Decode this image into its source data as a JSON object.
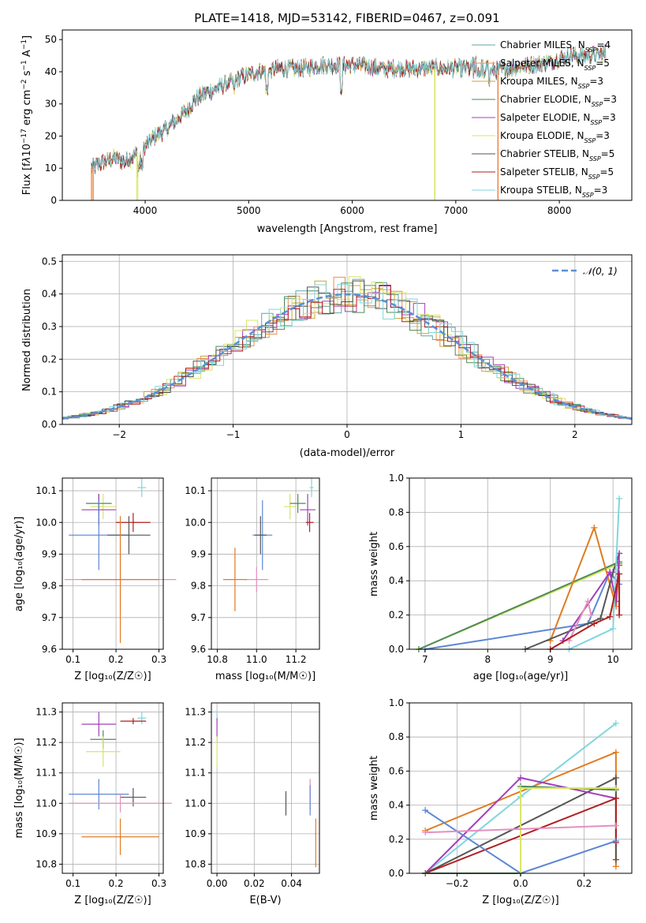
{
  "colors": {
    "chabrier_miles": "#5fa6a0",
    "salpeter_miles": "#ef8d52",
    "kroupa_miles": "#c9a437",
    "chabrier_elodie": "#4d8a56",
    "salpeter_elodie": "#a33fb8",
    "kroupa_elodie": "#d9e468",
    "chabrier_stelib": "#555555",
    "salpeter_stelib": "#b01e1e",
    "kroupa_stelib": "#7fd6de",
    "blue_point": "#5d86d4",
    "orange_point": "#e07b22",
    "pink_point": "#e58fbf",
    "normal_curve": "#5a8fd6"
  },
  "chart_data": [
    {
      "id": "spectrum",
      "type": "line",
      "title": "PLATE=1418, MJD=53142, FIBERID=0467, z=0.091",
      "xlabel": "wavelength [Angstrom, rest frame]",
      "ylabel": "Flux [f",
      "ylabel_parts": [
        "Flux [f",
        "λ",
        "10",
        "−17",
        " erg cm",
        "−2",
        " s",
        "−1",
        " A",
        "−1",
        "]"
      ],
      "xlim": [
        3200,
        8700
      ],
      "ylim": [
        0,
        53
      ],
      "xticks": [
        "4000",
        "5000",
        "6000",
        "7000",
        "8000"
      ],
      "yticks": [
        "0",
        "10",
        "20",
        "30",
        "40",
        "50"
      ],
      "legend_position": "top-right",
      "series": [
        {
          "name": "Chabrier MILES",
          "nssp": "4"
        },
        {
          "name": "Salpeter MILES",
          "nssp": "5"
        },
        {
          "name": "Kroupa MILES",
          "nssp": "3"
        },
        {
          "name": "Chabrier ELODIE",
          "nssp": "3"
        },
        {
          "name": "Salpeter ELODIE",
          "nssp": "3"
        },
        {
          "name": "Kroupa ELODIE",
          "nssp": "3"
        },
        {
          "name": "Chabrier STELIB",
          "nssp": "5"
        },
        {
          "name": "Salpeter STELIB",
          "nssp": "5"
        },
        {
          "name": "Kroupa STELIB",
          "nssp": "3"
        }
      ],
      "nssp_label": "N",
      "nssp_sub": "SSP",
      "continuum": {
        "x": [
          3480,
          3600,
          3700,
          3800,
          3900,
          4000,
          4100,
          4200,
          4300,
          4400,
          4500,
          4700,
          4900,
          5100,
          5300,
          5500,
          5700,
          5900,
          6100,
          6300,
          6500,
          6700,
          6900,
          7100,
          7300,
          7500,
          7700,
          7900,
          8100,
          8300,
          8500
        ],
        "y": [
          10,
          12,
          13,
          12,
          14,
          17,
          20,
          22,
          25,
          28,
          32,
          35,
          38,
          40,
          41,
          41,
          42,
          42,
          42,
          41,
          41,
          41,
          41,
          41,
          40,
          41,
          42,
          43,
          45,
          45,
          46
        ]
      },
      "dropouts": [
        {
          "name": "Salpeter MILES",
          "x": [
            3480,
            3490,
            3500
          ]
        },
        {
          "name": "Kroupa ELODIE",
          "x": [
            3920,
            3930,
            6795,
            6800
          ]
        },
        {
          "name": "Salpeter MILES",
          "x": [
            7405,
            7410
          ]
        }
      ]
    },
    {
      "id": "residual-histogram",
      "type": "histogram",
      "xlabel": "(data-model)/error",
      "ylabel": "Normed distribution",
      "xlim": [
        -2.5,
        2.5
      ],
      "ylim": [
        0,
        0.52
      ],
      "xticks": [
        "−2",
        "−1",
        "0",
        "1",
        "2"
      ],
      "yticks": [
        "0.0",
        "0.1",
        "0.2",
        "0.3",
        "0.4",
        "0.5"
      ],
      "legend_position": "top-right",
      "reference_curve": {
        "name": "𝒩(0, 1)",
        "type": "normal",
        "mean": 0,
        "sigma": 1
      },
      "bin_width": 0.1
    },
    {
      "id": "age-vs-metallicity",
      "type": "scatter",
      "xlabel": "Z [log₁₀(Z/Z☉)]",
      "ylabel": "age  [log₁₀(age/yr)]",
      "xlim": [
        0.075,
        0.31
      ],
      "ylim": [
        9.6,
        10.14
      ],
      "xticks": [
        "0.1",
        "0.2",
        "0.3"
      ],
      "yticks": [
        "9.6",
        "9.7",
        "9.8",
        "9.9",
        "10.0",
        "10.1"
      ],
      "points": [
        {
          "x": 0.26,
          "y": 10.11,
          "xerr": 0.01,
          "yerr": 0.03,
          "c": "kroupa_stelib"
        },
        {
          "x": 0.17,
          "y": 10.05,
          "xerr": 0.03,
          "yerr": 0.04,
          "c": "kroupa_elodie"
        },
        {
          "x": 0.16,
          "y": 10.06,
          "xerr": 0.03,
          "yerr": 0.03,
          "c": "chabrier_elodie"
        },
        {
          "x": 0.16,
          "y": 10.04,
          "xerr": 0.04,
          "yerr": 0.05,
          "c": "salpeter_elodie"
        },
        {
          "x": 0.24,
          "y": 10.0,
          "xerr": 0.04,
          "yerr": 0.03,
          "c": "salpeter_stelib"
        },
        {
          "x": 0.16,
          "y": 9.96,
          "xerr": 0.07,
          "yerr": 0.11,
          "c": "blue_point"
        },
        {
          "x": 0.23,
          "y": 9.96,
          "xerr": 0.05,
          "yerr": 0.06,
          "c": "chabrier_stelib"
        },
        {
          "x": 0.21,
          "y": 9.82,
          "xerr": 0.13,
          "yerr": 0.1,
          "c": "pink_point"
        },
        {
          "x": 0.21,
          "y": 9.82,
          "xerr": 0.09,
          "yerr": 0.2,
          "c": "orange_point"
        }
      ]
    },
    {
      "id": "age-vs-mass",
      "type": "scatter",
      "xlabel": "mass [log₁₀(M/M☉)]",
      "ylabel": "",
      "xlim": [
        10.77,
        11.32
      ],
      "ylim": [
        9.6,
        10.14
      ],
      "xticks": [
        "10.8",
        "11.0",
        "11.2"
      ],
      "yticks": [
        "9.6",
        "9.7",
        "9.8",
        "9.9",
        "10.0",
        "10.1"
      ],
      "points": [
        {
          "x": 11.28,
          "y": 10.11,
          "xerr": 0.01,
          "yerr": 0.03,
          "c": "kroupa_stelib"
        },
        {
          "x": 11.17,
          "y": 10.05,
          "xerr": 0.03,
          "yerr": 0.04,
          "c": "kroupa_elodie"
        },
        {
          "x": 11.21,
          "y": 10.06,
          "xerr": 0.04,
          "yerr": 0.03,
          "c": "chabrier_elodie"
        },
        {
          "x": 11.26,
          "y": 10.04,
          "xerr": 0.04,
          "yerr": 0.05,
          "c": "salpeter_elodie"
        },
        {
          "x": 11.27,
          "y": 10.0,
          "xerr": 0.02,
          "yerr": 0.03,
          "c": "salpeter_stelib"
        },
        {
          "x": 11.03,
          "y": 9.96,
          "xerr": 0.05,
          "yerr": 0.11,
          "c": "blue_point"
        },
        {
          "x": 11.02,
          "y": 9.96,
          "xerr": 0.03,
          "yerr": 0.06,
          "c": "chabrier_stelib"
        },
        {
          "x": 11.0,
          "y": 9.82,
          "xerr": 0.06,
          "yerr": 0.04,
          "c": "pink_point"
        },
        {
          "x": 10.89,
          "y": 9.82,
          "xerr": 0.06,
          "yerr": 0.1,
          "c": "orange_point"
        }
      ]
    },
    {
      "id": "mass-weight-vs-age",
      "type": "line",
      "xlabel": "age  [log₁₀(age/yr)]",
      "ylabel": "mass weight",
      "xlim": [
        6.75,
        10.3
      ],
      "ylim": [
        0,
        1
      ],
      "xticks": [
        "7",
        "8",
        "9",
        "10"
      ],
      "yticks": [
        "0.0",
        "0.2",
        "0.4",
        "0.6",
        "0.8",
        "1.0"
      ],
      "series": [
        {
          "c": "kroupa_elodie",
          "x": [
            6.9,
            10.1
          ],
          "y": [
            0.0,
            0.5
          ]
        },
        {
          "c": "chabrier_elodie",
          "x": [
            6.9,
            10.1,
            10.1
          ],
          "y": [
            0.0,
            0.51,
            0.49
          ]
        },
        {
          "c": "blue_point",
          "x": [
            7.0,
            9.6,
            9.95,
            10.1
          ],
          "y": [
            0.0,
            0.15,
            0.45,
            0.38
          ]
        },
        {
          "c": "orange_point",
          "x": [
            9.0,
            9.7,
            10.05,
            10.1
          ],
          "y": [
            0.05,
            0.71,
            0.25,
            0.5
          ]
        },
        {
          "c": "chabrier_stelib",
          "x": [
            8.6,
            9.8,
            10.0,
            10.1
          ],
          "y": [
            0.0,
            0.18,
            0.45,
            0.56
          ]
        },
        {
          "c": "salpeter_elodie",
          "x": [
            9.2,
            9.95,
            10.05,
            10.1
          ],
          "y": [
            0.05,
            0.45,
            0.28,
            0.56
          ]
        },
        {
          "c": "pink_point",
          "x": [
            9.3,
            9.6,
            9.65
          ],
          "y": [
            0.05,
            0.28,
            0.2
          ]
        },
        {
          "c": "kroupa_stelib",
          "x": [
            9.3,
            10.0,
            10.1
          ],
          "y": [
            0.0,
            0.12,
            0.88
          ]
        },
        {
          "c": "salpeter_stelib",
          "x": [
            9.0,
            9.7,
            9.95,
            10.1,
            10.1
          ],
          "y": [
            0.0,
            0.15,
            0.19,
            0.44,
            0.2
          ]
        }
      ]
    },
    {
      "id": "mass-vs-metallicity",
      "type": "scatter",
      "xlabel": "Z [log₁₀(Z/Z☉)]",
      "ylabel": "mass [log₁₀(M/M☉)]",
      "xlim": [
        0.075,
        0.31
      ],
      "ylim": [
        10.77,
        11.33
      ],
      "xticks": [
        "0.1",
        "0.2",
        "0.3"
      ],
      "yticks": [
        "10.8",
        "10.9",
        "11.0",
        "11.1",
        "11.2",
        "11.3"
      ],
      "points": [
        {
          "x": 0.26,
          "y": 11.28,
          "xerr": 0.01,
          "yerr": 0.02,
          "c": "kroupa_stelib"
        },
        {
          "x": 0.24,
          "y": 11.27,
          "xerr": 0.03,
          "yerr": 0.01,
          "c": "salpeter_stelib"
        },
        {
          "x": 0.16,
          "y": 11.26,
          "xerr": 0.04,
          "yerr": 0.04,
          "c": "salpeter_elodie"
        },
        {
          "x": 0.17,
          "y": 11.21,
          "xerr": 0.03,
          "yerr": 0.03,
          "c": "chabrier_elodie"
        },
        {
          "x": 0.17,
          "y": 11.17,
          "xerr": 0.04,
          "yerr": 0.05,
          "c": "kroupa_elodie"
        },
        {
          "x": 0.16,
          "y": 11.03,
          "xerr": 0.07,
          "yerr": 0.05,
          "c": "blue_point"
        },
        {
          "x": 0.24,
          "y": 11.02,
          "xerr": 0.03,
          "yerr": 0.03,
          "c": "chabrier_stelib"
        },
        {
          "x": 0.21,
          "y": 11.0,
          "xerr": 0.12,
          "yerr": 0.03,
          "c": "pink_point"
        },
        {
          "x": 0.21,
          "y": 10.89,
          "xerr": 0.09,
          "yerr": 0.06,
          "c": "orange_point"
        }
      ]
    },
    {
      "id": "mass-vs-ebv",
      "type": "scatter",
      "xlabel": "E(B-V)",
      "ylabel": "",
      "xlim": [
        -0.003,
        0.055
      ],
      "ylim": [
        10.77,
        11.33
      ],
      "xticks": [
        "0.00",
        "0.02",
        "0.04"
      ],
      "yticks": [
        "10.8",
        "10.9",
        "11.0",
        "11.1",
        "11.2",
        "11.3"
      ],
      "points": [
        {
          "x": 0.0,
          "y": 11.28,
          "yerr": 0.02,
          "c": "kroupa_stelib"
        },
        {
          "x": 0.0,
          "y": 11.24,
          "yerr": 0.04,
          "c": "salpeter_elodie"
        },
        {
          "x": 0.0,
          "y": 11.17,
          "yerr": 0.05,
          "c": "kroupa_elodie"
        },
        {
          "x": 0.037,
          "y": 11.0,
          "yerr": 0.04,
          "c": "chabrier_stelib"
        },
        {
          "x": 0.05,
          "y": 11.03,
          "yerr": 0.05,
          "c": "pink_point"
        },
        {
          "x": 0.05,
          "y": 11.01,
          "yerr": 0.05,
          "c": "blue_point"
        },
        {
          "x": 0.053,
          "y": 10.87,
          "yerr": 0.08,
          "c": "orange_point"
        }
      ]
    },
    {
      "id": "mass-weight-vs-metallicity",
      "type": "line",
      "xlabel": "Z [log₁₀(Z/Z☉)]",
      "ylabel": "mass weight",
      "xlim": [
        -0.35,
        0.35
      ],
      "ylim": [
        0,
        1
      ],
      "xticks": [
        "−0.2",
        "0.0",
        "0.2"
      ],
      "yticks": [
        "0.0",
        "0.2",
        "0.4",
        "0.6",
        "0.8",
        "1.0"
      ],
      "series": [
        {
          "c": "kroupa_stelib",
          "x": [
            -0.3,
            0.0,
            0.3
          ],
          "y": [
            0.0,
            0.45,
            0.88
          ]
        },
        {
          "c": "orange_point",
          "x": [
            -0.3,
            0.3,
            0.3
          ],
          "y": [
            0.25,
            0.71,
            0.04
          ]
        },
        {
          "c": "chabrier_stelib",
          "x": [
            -0.3,
            0.3,
            0.3
          ],
          "y": [
            0.0,
            0.56,
            0.08
          ]
        },
        {
          "c": "salpeter_elodie",
          "x": [
            -0.3,
            0.0,
            0.3
          ],
          "y": [
            0.0,
            0.56,
            0.44
          ]
        },
        {
          "c": "salpeter_stelib",
          "x": [
            -0.3,
            0.3,
            0.3
          ],
          "y": [
            0.0,
            0.44,
            0.18
          ]
        },
        {
          "c": "blue_point",
          "x": [
            -0.3,
            0.0,
            0.3
          ],
          "y": [
            0.37,
            0.0,
            0.19
          ]
        },
        {
          "c": "chabrier_elodie",
          "x": [
            -0.3,
            0.0,
            0.0,
            0.3
          ],
          "y": [
            0.0,
            0.0,
            0.51,
            0.49
          ]
        },
        {
          "c": "kroupa_elodie",
          "x": [
            0.0,
            0.0,
            0.3
          ],
          "y": [
            0.0,
            0.5,
            0.5
          ]
        },
        {
          "c": "pink_point",
          "x": [
            -0.3,
            0.3
          ],
          "y": [
            0.24,
            0.28
          ]
        }
      ]
    }
  ]
}
